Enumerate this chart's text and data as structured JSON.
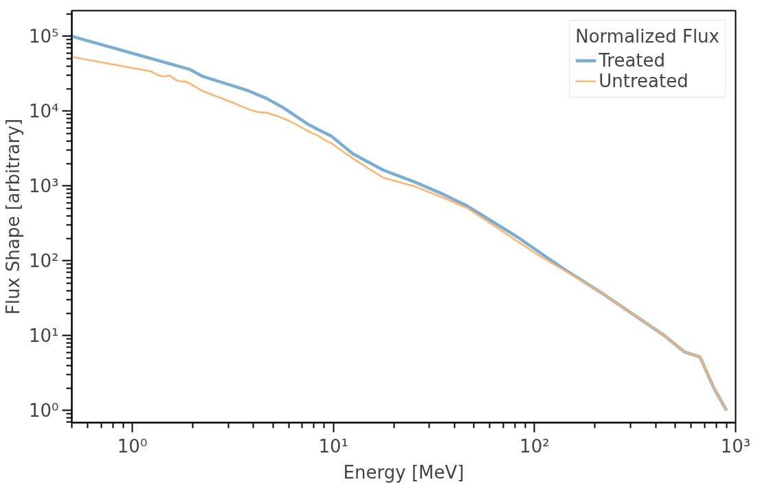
{
  "chart_data": {
    "type": "line",
    "xlabel": "Energy [MeV]",
    "ylabel": "Flux Shape [arbitrary]",
    "legend_title": "Normalized Flux",
    "legend": "top right",
    "log": "xy",
    "grid": false,
    "line_style": "solid",
    "marker": "none",
    "xlim": [
      0.5,
      1000
    ],
    "ylim": [
      0.69,
      220000
    ],
    "xticks": [
      {
        "value": 1,
        "label": "10⁰"
      },
      {
        "value": 10,
        "label": "10¹"
      },
      {
        "value": 100,
        "label": "10²"
      },
      {
        "value": 1000,
        "label": "10³"
      }
    ],
    "yticks": [
      {
        "value": 1,
        "label": "10⁰"
      },
      {
        "value": 10,
        "label": "10¹"
      },
      {
        "value": 100,
        "label": "10²"
      },
      {
        "value": 1000,
        "label": "10³"
      },
      {
        "value": 10000,
        "label": "10⁴"
      },
      {
        "value": 100000,
        "label": "10⁵"
      }
    ],
    "series": [
      {
        "name": "Treated",
        "color": "#79add2",
        "x": [
          0.5,
          1.92,
          2.22,
          3.78,
          4.67,
          5.63,
          7.53,
          8.6,
          9.8,
          12.5,
          17.7,
          25.4,
          35.4,
          46.4,
          82,
          120,
          146,
          210,
          437,
          555,
          665,
          782,
          902
        ],
        "values": [
          100000,
          36300,
          29400,
          18700,
          14700,
          11100,
          6600,
          5500,
          4600,
          2690,
          1630,
          1130,
          767,
          540,
          209,
          103,
          72,
          39,
          10.3,
          6.1,
          5.2,
          1.97,
          1.0
        ]
      },
      {
        "name": "Untreated",
        "color": "#ffb26e",
        "x": [
          0.5,
          1.24,
          1.35,
          1.44,
          1.53,
          1.64,
          1.73,
          1.82,
          1.92,
          2.22,
          3.23,
          3.78,
          4.2,
          4.67,
          5.2,
          6.1,
          7.7,
          8.4,
          9.2,
          9.8,
          12.8,
          17.7,
          25.4,
          35.4,
          46.4,
          61.8,
          103,
          146,
          210,
          437,
          555,
          665,
          782,
          902
        ],
        "values": [
          53000,
          33900,
          30000,
          28800,
          30000,
          26200,
          25000,
          25000,
          23600,
          18700,
          12700,
          10600,
          9700,
          9500,
          8700,
          7300,
          5200,
          4700,
          4000,
          3700,
          2230,
          1290,
          986,
          693,
          505,
          305,
          122,
          70,
          39,
          10.3,
          6.1,
          5.2,
          1.97,
          1.0
        ]
      }
    ]
  }
}
